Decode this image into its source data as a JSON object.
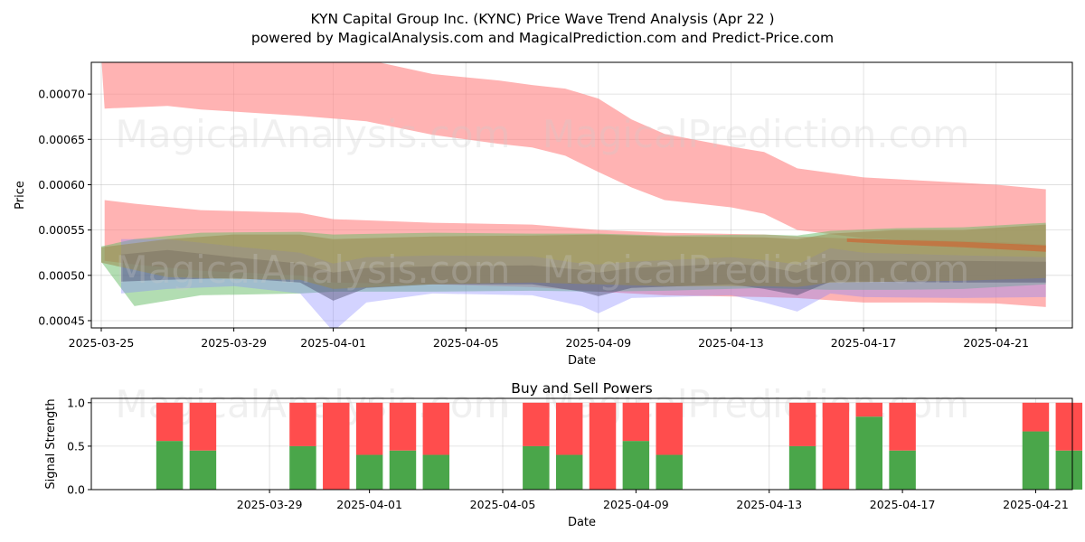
{
  "title_line1": "KYN Capital Group Inc. (KYNC) Price Wave Trend Analysis (Apr 22 )",
  "title_line2": "powered by MagicalAnalysis.com and MagicalPrediction.com and Predict-Price.com",
  "watermarks": [
    "MagicalAnalysis.com",
    "MagicalPrediction.com"
  ],
  "colors": {
    "red_band": "#ff8080",
    "green_band": "#66bb66",
    "blue_band": "#8080ff",
    "dark_band": "#4a4a6a",
    "olive_band": "#9a8a50",
    "buy_bar": "#4aa64a",
    "sell_bar": "#ff4d4d",
    "orange_line": "#cc6633"
  },
  "chart_data": [
    {
      "type": "area",
      "title": "",
      "xlabel": "Date",
      "ylabel": "Price",
      "x_range_days": [
        -0.3,
        29.3
      ],
      "ylim": [
        0.000442,
        0.000735
      ],
      "x_ticks": [
        {
          "day": 0,
          "label": "2025-03-25"
        },
        {
          "day": 4,
          "label": "2025-03-29"
        },
        {
          "day": 7,
          "label": "2025-04-01"
        },
        {
          "day": 11,
          "label": "2025-04-05"
        },
        {
          "day": 15,
          "label": "2025-04-09"
        },
        {
          "day": 19,
          "label": "2025-04-13"
        },
        {
          "day": 23,
          "label": "2025-04-17"
        },
        {
          "day": 27,
          "label": "2025-04-21"
        }
      ],
      "y_ticks": [
        {
          "value": 0.00045,
          "label": "0.00045"
        },
        {
          "value": 0.0005,
          "label": "0.00050"
        },
        {
          "value": 0.00055,
          "label": "0.00055"
        },
        {
          "value": 0.0006,
          "label": "0.00060"
        },
        {
          "value": 0.00065,
          "label": "0.00065"
        },
        {
          "value": 0.0007,
          "label": "0.00070"
        }
      ],
      "grid": true,
      "series": [
        {
          "name": "upper-red-band",
          "color": "red_band",
          "opacity": 0.6,
          "x": [
            0,
            0.1,
            2,
            3,
            6,
            7,
            8,
            10,
            12,
            13,
            14,
            15,
            16,
            17,
            19,
            20,
            21,
            23,
            25,
            27,
            28.5
          ],
          "upper": [
            0.000742,
            0.000742,
            0.000742,
            0.000742,
            0.000742,
            0.000742,
            0.000738,
            0.000722,
            0.000715,
            0.00071,
            0.000706,
            0.000695,
            0.000672,
            0.000656,
            0.000642,
            0.000636,
            0.000618,
            0.000608,
            0.000604,
            0.0006,
            0.000595
          ],
          "lower": [
            0.000742,
            0.000684,
            0.000687,
            0.000683,
            0.000676,
            0.000673,
            0.00067,
            0.000655,
            0.000645,
            0.000641,
            0.000632,
            0.000614,
            0.000597,
            0.000583,
            0.000575,
            0.000568,
            0.00055,
            0.000541,
            0.000538,
            0.000535,
            0.00053
          ]
        },
        {
          "name": "lower-red-band",
          "color": "red_band",
          "opacity": 0.6,
          "x": [
            0.1,
            1,
            3,
            6,
            7,
            10,
            13,
            15,
            17,
            20,
            21,
            23,
            25,
            27,
            28.5
          ],
          "upper": [
            0.000583,
            0.000579,
            0.000572,
            0.000569,
            0.000562,
            0.000558,
            0.000556,
            0.00055,
            0.000547,
            0.000545,
            0.000543,
            0.00054,
            0.000539,
            0.000537,
            0.000534
          ],
          "lower": [
            0.000516,
            0.000512,
            0.000505,
            0.0005,
            0.000492,
            0.00049,
            0.000487,
            0.000482,
            0.000478,
            0.000476,
            0.000475,
            0.00047,
            0.00047,
            0.000469,
            0.000465
          ]
        },
        {
          "name": "green-band",
          "color": "green_band",
          "opacity": 0.5,
          "x": [
            0,
            1,
            3,
            6,
            7,
            10,
            13,
            15,
            17,
            20,
            21,
            22,
            24,
            26,
            28.5
          ],
          "upper": [
            0.000532,
            0.00054,
            0.000547,
            0.000548,
            0.000545,
            0.000547,
            0.000546,
            0.000546,
            0.000544,
            0.000545,
            0.000544,
            0.000549,
            0.000552,
            0.000553,
            0.000558
          ],
          "lower": [
            0.000515,
            0.000466,
            0.000478,
            0.00048,
            0.000482,
            0.000482,
            0.000483,
            0.000482,
            0.000483,
            0.000486,
            0.000485,
            0.000484,
            0.000484,
            0.000485,
            0.00049
          ]
        },
        {
          "name": "blue-band",
          "color": "blue_band",
          "opacity": 0.35,
          "x": [
            0.6,
            2,
            4,
            6,
            7,
            8,
            10,
            13,
            14.5,
            15,
            16,
            19,
            20,
            21,
            22,
            23,
            26,
            28.5
          ],
          "upper": [
            0.00054,
            0.00054,
            0.000532,
            0.000525,
            0.000513,
            0.00052,
            0.000522,
            0.000521,
            0.000513,
            0.000512,
            0.000515,
            0.00052,
            0.000517,
            0.000512,
            0.00053,
            0.000525,
            0.000522,
            0.00052
          ],
          "lower": [
            0.00048,
            0.000485,
            0.000488,
            0.00048,
            0.000438,
            0.00047,
            0.00048,
            0.000478,
            0.000466,
            0.000458,
            0.000475,
            0.000478,
            0.00047,
            0.00046,
            0.00048,
            0.000476,
            0.000475,
            0.000476
          ]
        },
        {
          "name": "dark-band",
          "color": "dark_band",
          "opacity": 0.45,
          "x": [
            0.6,
            2,
            4,
            6,
            7,
            8,
            10,
            13,
            14.5,
            15,
            16,
            19,
            20,
            21,
            22,
            23,
            26,
            28.5
          ],
          "upper": [
            0.000523,
            0.000528,
            0.00052,
            0.000513,
            0.000503,
            0.000508,
            0.00051,
            0.000511,
            0.000506,
            0.000503,
            0.000508,
            0.000513,
            0.00051,
            0.000503,
            0.000517,
            0.000516,
            0.000516,
            0.000515
          ],
          "lower": [
            0.000493,
            0.000495,
            0.000497,
            0.000492,
            0.000472,
            0.000486,
            0.00049,
            0.00049,
            0.000482,
            0.000477,
            0.000486,
            0.00049,
            0.000485,
            0.000478,
            0.000493,
            0.000493,
            0.000492,
            0.000492
          ]
        },
        {
          "name": "olive-band",
          "color": "olive_band",
          "opacity": 0.55,
          "x": [
            0,
            2,
            4,
            6,
            7,
            10,
            13,
            15,
            17,
            20,
            21,
            22,
            24,
            26,
            28.5
          ],
          "upper": [
            0.000531,
            0.00054,
            0.000545,
            0.000545,
            0.00054,
            0.000543,
            0.000544,
            0.000545,
            0.000543,
            0.000542,
            0.00054,
            0.000546,
            0.00055,
            0.00055,
            0.000556
          ],
          "lower": [
            0.000514,
            0.000498,
            0.000496,
            0.000495,
            0.000485,
            0.00049,
            0.000492,
            0.00049,
            0.000488,
            0.000488,
            0.000487,
            0.000492,
            0.000493,
            0.000494,
            0.000497
          ]
        },
        {
          "name": "orange-trend",
          "color": "orange_line",
          "opacity": 0.7,
          "x": [
            22.5,
            24,
            26,
            28.5
          ],
          "upper": [
            0.000541,
            0.000539,
            0.000537,
            0.000533
          ],
          "lower": [
            0.000537,
            0.000534,
            0.000531,
            0.000526
          ]
        }
      ]
    },
    {
      "type": "bar",
      "title": "Buy and Sell Powers",
      "xlabel": "Date",
      "ylabel": "Signal Strength",
      "x_range_days": [
        -1.35,
        28.1
      ],
      "ylim": [
        0,
        1.05
      ],
      "x_ticks": [
        {
          "day": 4,
          "label": "2025-03-29"
        },
        {
          "day": 7,
          "label": "2025-04-01"
        },
        {
          "day": 11,
          "label": "2025-04-05"
        },
        {
          "day": 15,
          "label": "2025-04-09"
        },
        {
          "day": 19,
          "label": "2025-04-13"
        },
        {
          "day": 23,
          "label": "2025-04-17"
        },
        {
          "day": 27,
          "label": "2025-04-21"
        }
      ],
      "y_ticks": [
        {
          "value": 0.0,
          "label": "0.0"
        },
        {
          "value": 0.5,
          "label": "0.5"
        },
        {
          "value": 1.0,
          "label": "1.0"
        }
      ],
      "grid": true,
      "days": [
        1,
        2,
        5,
        6,
        7,
        8,
        9,
        12,
        13,
        14,
        15,
        16,
        20,
        21,
        22,
        23,
        27,
        28
      ],
      "series": [
        {
          "name": "Buy",
          "color": "buy_bar",
          "values": [
            0.56,
            0.45,
            0.5,
            0.0,
            0.4,
            0.45,
            0.4,
            0.5,
            0.4,
            0.0,
            0.56,
            0.4,
            0.5,
            0.0,
            0.84,
            0.45,
            0.67,
            0.45
          ]
        },
        {
          "name": "Sell",
          "color": "sell_bar",
          "values": [
            0.44,
            0.55,
            0.5,
            1.0,
            0.6,
            0.55,
            0.6,
            0.5,
            0.6,
            1.0,
            0.44,
            0.6,
            0.5,
            1.0,
            0.16,
            0.55,
            0.33,
            0.55
          ]
        }
      ]
    }
  ]
}
